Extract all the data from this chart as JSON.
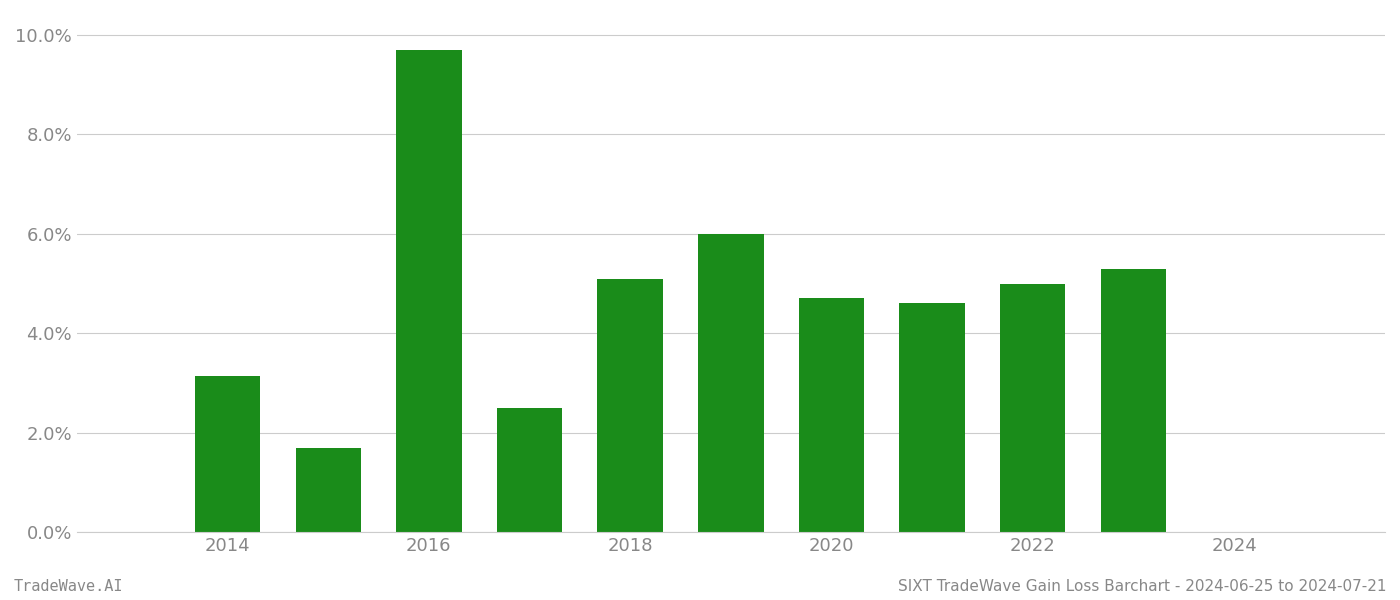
{
  "years": [
    2014,
    2015,
    2016,
    2017,
    2018,
    2019,
    2020,
    2021,
    2022,
    2023
  ],
  "values": [
    0.0315,
    0.017,
    0.097,
    0.025,
    0.051,
    0.06,
    0.047,
    0.046,
    0.05,
    0.053
  ],
  "bar_color": "#1a8c1a",
  "ylim": [
    0,
    0.104
  ],
  "yticks": [
    0.0,
    0.02,
    0.04,
    0.06,
    0.08,
    0.1
  ],
  "xticks": [
    2014,
    2016,
    2018,
    2020,
    2022,
    2024
  ],
  "xlim": [
    2012.5,
    2025.5
  ],
  "xlabel": "",
  "ylabel": "",
  "footer_left": "TradeWave.AI",
  "footer_right": "SIXT TradeWave Gain Loss Barchart - 2024-06-25 to 2024-07-21",
  "background_color": "#ffffff",
  "grid_color": "#cccccc",
  "tick_color": "#888888",
  "font_color": "#888888",
  "footer_font_size": 11,
  "tick_label_size": 13,
  "bar_width": 0.65
}
